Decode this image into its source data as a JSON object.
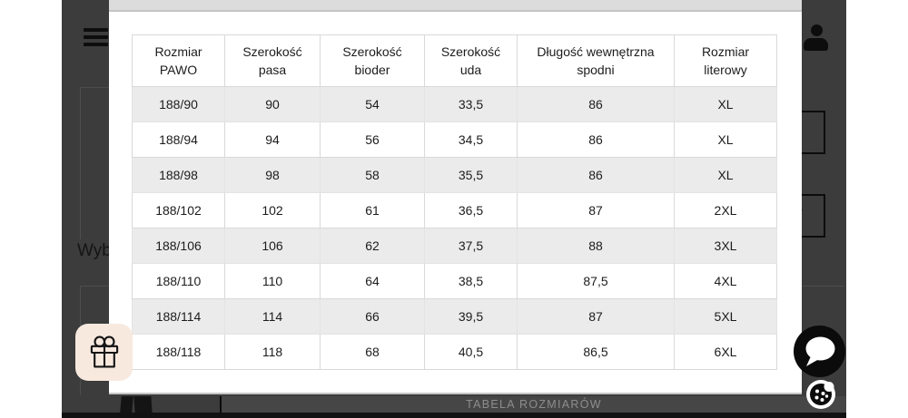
{
  "background_page": {
    "partial_heading": "Wyb",
    "size_table_button_label": "TABELA ROZMIARÓW"
  },
  "header": {
    "menu_icon": "hamburger-icon",
    "account_icon": "person-icon"
  },
  "modal": {
    "table": {
      "headers": [
        "Rozmiar PAWO",
        "Szerokość pasa",
        "Szerokość bioder",
        "Szerokość uda",
        "Długość wewnętrzna spodni",
        "Rozmiar literowy"
      ],
      "rows": [
        [
          "188/90",
          "90",
          "54",
          "33,5",
          "86",
          "XL"
        ],
        [
          "188/94",
          "94",
          "56",
          "34,5",
          "86",
          "XL"
        ],
        [
          "188/98",
          "98",
          "58",
          "35,5",
          "86",
          "XL"
        ],
        [
          "188/102",
          "102",
          "61",
          "36,5",
          "87",
          "2XL"
        ],
        [
          "188/106",
          "106",
          "62",
          "37,5",
          "88",
          "3XL"
        ],
        [
          "188/110",
          "110",
          "64",
          "38,5",
          "87,5",
          "4XL"
        ],
        [
          "188/114",
          "114",
          "66",
          "39,5",
          "87",
          "5XL"
        ],
        [
          "188/118",
          "118",
          "68",
          "40,5",
          "86,5",
          "6XL"
        ]
      ]
    }
  },
  "floating": {
    "gift_icon": "gift-icon",
    "chat_icon": "chat-bubble-icon",
    "cookie_icon": "cookie-icon"
  },
  "colors": {
    "overlay": "#3c3c3c",
    "row_stripe": "#ebebeb",
    "table_border": "#d9d9d9",
    "gift_bg": "#f8e9df",
    "modal_top_band": "#dcdcdc"
  }
}
